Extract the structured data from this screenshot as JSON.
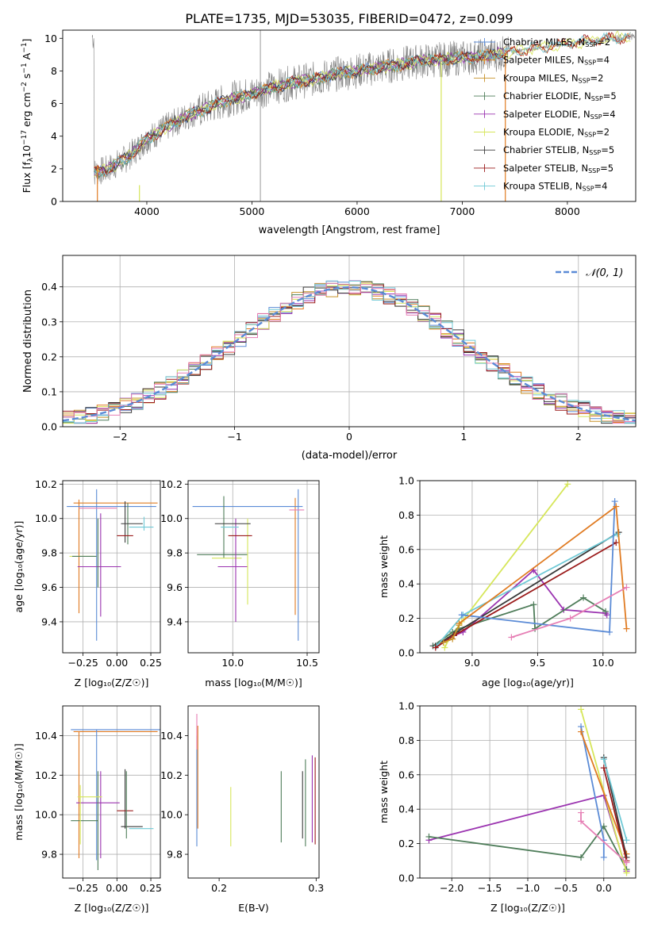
{
  "figure_title": "PLATE=1735, MJD=53035, FIBERID=0472, z=0.099",
  "colors": {
    "chabrier_miles": "#5b8bd6",
    "salpeter_miles": "#e07b22",
    "kroupa_miles": "#c8922a",
    "chabrier_elodie": "#4f7d5a",
    "salpeter_elodie": "#9b34b0",
    "kroupa_elodie": "#d6e65a",
    "chabrier_stelib": "#3a3a3a",
    "salpeter_stelib": "#9b1b1b",
    "kroupa_stelib": "#6fc9d6",
    "pink": "#e67fb5",
    "data_gray": "#808080",
    "normal_curve": "#5b8bd6"
  },
  "chart_data": [
    {
      "id": "spectrum",
      "type": "line",
      "title": "PLATE=1735, MJD=53035, FIBERID=0472, z=0.099",
      "xlabel": "wavelength [Angstrom, rest frame]",
      "ylabel_main": "Flux [f",
      "ylabel_sub": "λ",
      "ylabel_mid": "10",
      "ylabel_sup1": "−17",
      "ylabel_mid2": " erg cm",
      "ylabel_sup2": "−2",
      "ylabel_mid3": " s",
      "ylabel_sup3": "−1",
      "ylabel_mid4": " A",
      "ylabel_sup4": "−1",
      "ylabel_end": "]",
      "xlim": [
        3200,
        8650
      ],
      "ylim": [
        0,
        10.5
      ],
      "xticks": [
        4000,
        5000,
        6000,
        7000,
        8000
      ],
      "yticks": [
        0,
        2,
        4,
        6,
        8,
        10
      ],
      "legend_placement": "right",
      "legend": [
        {
          "imf": "Chabrier",
          "lib": "MILES",
          "n": "2",
          "color": "#5b8bd6"
        },
        {
          "imf": "Salpeter",
          "lib": "MILES",
          "n": "4",
          "color": "#e07b22"
        },
        {
          "imf": "Kroupa",
          "lib": "MILES",
          "n": "2",
          "color": "#c8922a"
        },
        {
          "imf": "Chabrier",
          "lib": "ELODIE",
          "n": "5",
          "color": "#4f7d5a"
        },
        {
          "imf": "Salpeter",
          "lib": "ELODIE",
          "n": "4",
          "color": "#9b34b0"
        },
        {
          "imf": "Kroupa",
          "lib": "ELODIE",
          "n": "2",
          "color": "#d6e65a"
        },
        {
          "imf": "Chabrier",
          "lib": "STELIB",
          "n": "5",
          "color": "#3a3a3a"
        },
        {
          "imf": "Salpeter",
          "lib": "STELIB",
          "n": "5",
          "color": "#9b1b1b"
        },
        {
          "imf": "Kroupa",
          "lib": "STELIB",
          "n": "4",
          "color": "#6fc9d6"
        }
      ],
      "legend_nssp_label": "N",
      "legend_nssp_sub": "SSP",
      "continuum": {
        "x": [
          3500,
          3600,
          3800,
          4000,
          4200,
          4400,
          4600,
          4800,
          5000,
          5200,
          5400,
          5600,
          5800,
          6000,
          6200,
          6400,
          6600,
          6800,
          7000,
          7200,
          7400,
          7700,
          8000,
          8300,
          8600
        ],
        "y": [
          1.8,
          1.9,
          2.6,
          3.8,
          4.6,
          5.3,
          5.8,
          6.3,
          6.6,
          7.0,
          7.3,
          7.5,
          7.8,
          8.0,
          8.2,
          8.4,
          8.6,
          8.7,
          8.8,
          8.9,
          9.1,
          9.4,
          9.7,
          9.9,
          10.1
        ]
      }
    },
    {
      "id": "residuals",
      "type": "histogram",
      "xlabel": "(data-model)/error",
      "ylabel": "Normed distribution",
      "xlim": [
        -2.5,
        2.5
      ],
      "ylim": [
        0,
        0.49
      ],
      "xticks": [
        -2,
        -1,
        0,
        1,
        2
      ],
      "yticks": [
        0.0,
        0.1,
        0.2,
        0.3,
        0.4
      ],
      "grid": true,
      "legend_label": "𝒩(0, 1)",
      "legend_placement": "top-right",
      "bin_width": 0.1
    },
    {
      "id": "age_vs_Z",
      "type": "errorbar",
      "xlabel": "Z [log₁₀(Z/Z☉)]",
      "ylabel": "age  [log₁₀(age/yr)]",
      "xlim": [
        -0.4,
        0.32
      ],
      "ylim": [
        9.22,
        10.22
      ],
      "xticks": [
        -0.25,
        0.0,
        0.25
      ],
      "xticklabels": [
        "−0.25",
        "0.00",
        "0.25"
      ],
      "yticks": [
        9.4,
        9.6,
        9.8,
        10.0,
        10.2
      ],
      "grid": true,
      "points": [
        {
          "x": -0.15,
          "y": 9.73,
          "xerr": 0.0,
          "yerr": 0.44,
          "color": "#5b8bd6"
        },
        {
          "x": -0.28,
          "y": 9.78,
          "xerr": 0.0,
          "yerr": 0.33,
          "color": "#e07b22"
        },
        {
          "x": -0.01,
          "y": 10.09,
          "xerr": 0.31,
          "yerr": 0.0,
          "color": "#e07b22"
        },
        {
          "x": -0.04,
          "y": 10.07,
          "xerr": 0.33,
          "yerr": 0.0,
          "color": "#5b8bd6"
        },
        {
          "x": -0.14,
          "y": 10.06,
          "xerr": 0.14,
          "yerr": 0.0,
          "color": "#e67fb5"
        },
        {
          "x": -0.12,
          "y": 9.73,
          "xerr": 0.0,
          "yerr": 0.3,
          "color": "#9b34b0"
        },
        {
          "x": -0.13,
          "y": 9.72,
          "xerr": 0.16,
          "yerr": 0.0,
          "color": "#9b34b0"
        },
        {
          "x": -0.26,
          "y": 9.78,
          "xerr": 0.09,
          "yerr": 0.0,
          "color": "#d6e65a"
        },
        {
          "x": -0.24,
          "y": 9.78,
          "xerr": 0.09,
          "yerr": 0.0,
          "color": "#4f7d5a"
        },
        {
          "x": -0.14,
          "y": 9.8,
          "xerr": 0.0,
          "yerr": 0.2,
          "color": "#4f7d5a"
        },
        {
          "x": 0.06,
          "y": 9.98,
          "xerr": 0.0,
          "yerr": 0.12,
          "color": "#3a3a3a"
        },
        {
          "x": 0.08,
          "y": 9.97,
          "xerr": 0.0,
          "yerr": 0.12,
          "color": "#4f7d5a"
        },
        {
          "x": 0.11,
          "y": 9.97,
          "xerr": 0.08,
          "yerr": 0.0,
          "color": "#3a3a3a"
        },
        {
          "x": 0.06,
          "y": 9.9,
          "xerr": 0.06,
          "yerr": 0.0,
          "color": "#9b1b1b"
        },
        {
          "x": 0.18,
          "y": 9.95,
          "xerr": 0.09,
          "yerr": 0.0,
          "color": "#6fc9d6"
        },
        {
          "x": 0.2,
          "y": 9.97,
          "xerr": 0.0,
          "yerr": 0.04,
          "color": "#6fc9d6"
        }
      ]
    },
    {
      "id": "age_vs_mass",
      "type": "errorbar",
      "xlabel": "mass [log₁₀(M/M☉)]",
      "xlim": [
        9.7,
        10.58
      ],
      "ylim": [
        9.22,
        10.22
      ],
      "xticks": [
        10.0,
        10.5
      ],
      "xticklabels": [
        "10.0",
        "10.5"
      ],
      "yticks": [
        9.4,
        9.6,
        9.8,
        10.0,
        10.2
      ],
      "grid": true,
      "points": [
        {
          "x": 10.44,
          "y": 9.73,
          "xerr": 0.0,
          "yerr": 0.44,
          "color": "#5b8bd6"
        },
        {
          "x": 10.42,
          "y": 9.78,
          "xerr": 0.0,
          "yerr": 0.34,
          "color": "#e07b22"
        },
        {
          "x": 10.1,
          "y": 10.07,
          "xerr": 0.37,
          "yerr": 0.0,
          "color": "#5b8bd6"
        },
        {
          "x": 10.43,
          "y": 10.05,
          "xerr": 0.05,
          "yerr": 0.0,
          "color": "#e67fb5"
        },
        {
          "x": 9.94,
          "y": 9.95,
          "xerr": 0.0,
          "yerr": 0.18,
          "color": "#4f7d5a"
        },
        {
          "x": 9.93,
          "y": 9.79,
          "xerr": 0.17,
          "yerr": 0.0,
          "color": "#4f7d5a"
        },
        {
          "x": 10.0,
          "y": 9.72,
          "xerr": 0.1,
          "yerr": 0.0,
          "color": "#9b34b0"
        },
        {
          "x": 9.96,
          "y": 9.77,
          "xerr": 0.1,
          "yerr": 0.0,
          "color": "#d6e65a"
        },
        {
          "x": 10.02,
          "y": 9.7,
          "xerr": 0.0,
          "yerr": 0.3,
          "color": "#9b34b0"
        },
        {
          "x": 10.1,
          "y": 9.75,
          "xerr": 0.0,
          "yerr": 0.25,
          "color": "#d6e65a"
        },
        {
          "x": 10.0,
          "y": 9.97,
          "xerr": 0.12,
          "yerr": 0.0,
          "color": "#3a3a3a"
        },
        {
          "x": 10.05,
          "y": 9.9,
          "xerr": 0.08,
          "yerr": 0.0,
          "color": "#9b1b1b"
        },
        {
          "x": 9.98,
          "y": 9.95,
          "xerr": 0.06,
          "yerr": 0.0,
          "color": "#6fc9d6"
        }
      ]
    },
    {
      "id": "weight_vs_age",
      "type": "line",
      "xlabel": "age  [log₁₀(age/yr)]",
      "ylabel": "mass weight",
      "xlim": [
        8.6,
        10.25
      ],
      "ylim": [
        0,
        1.0
      ],
      "xticks": [
        9.0,
        9.5,
        10.0
      ],
      "xticklabels": [
        "9.0",
        "9.5",
        "10.0"
      ],
      "yticks": [
        0.0,
        0.2,
        0.4,
        0.6,
        0.8,
        1.0
      ],
      "grid": true,
      "series": [
        {
          "color": "#d6e65a",
          "x": [
            8.79,
            8.83,
            8.92,
            9.73
          ],
          "y": [
            0.03,
            0.09,
            0.18,
            0.98
          ]
        },
        {
          "color": "#9b34b0",
          "x": [
            8.7,
            8.86,
            8.93,
            9.47,
            9.7,
            10.02,
            10.03
          ],
          "y": [
            0.04,
            0.1,
            0.12,
            0.48,
            0.25,
            0.23,
            0.22
          ]
        },
        {
          "color": "#4f7d5a",
          "x": [
            8.7,
            8.85,
            8.9,
            9.47,
            9.48,
            9.85,
            10.02
          ],
          "y": [
            0.04,
            0.12,
            0.14,
            0.28,
            0.14,
            0.32,
            0.24
          ]
        },
        {
          "color": "#3a3a3a",
          "x": [
            8.72,
            8.88,
            10.12
          ],
          "y": [
            0.04,
            0.12,
            0.7
          ]
        },
        {
          "color": "#6fc9d6",
          "x": [
            8.73,
            8.93,
            10.11
          ],
          "y": [
            0.04,
            0.22,
            0.69
          ]
        },
        {
          "color": "#9b1b1b",
          "x": [
            8.72,
            8.86,
            10.1
          ],
          "y": [
            0.03,
            0.1,
            0.64
          ]
        },
        {
          "color": "#5b8bd6",
          "x": [
            8.92,
            10.05,
            10.09
          ],
          "y": [
            0.22,
            0.12,
            0.88
          ]
        },
        {
          "color": "#e07b22",
          "x": [
            8.9,
            10.1,
            10.18
          ],
          "y": [
            0.17,
            0.85,
            0.14
          ]
        },
        {
          "color": "#e67fb5",
          "x": [
            9.3,
            9.75,
            10.18
          ],
          "y": [
            0.09,
            0.2,
            0.38
          ]
        },
        {
          "color": "#c8922a",
          "x": [
            8.78,
            8.85,
            8.9
          ],
          "y": [
            0.06,
            0.08,
            0.16
          ]
        }
      ]
    },
    {
      "id": "mass_vs_Z",
      "type": "errorbar",
      "xlabel": "Z [log₁₀(Z/Z☉)]",
      "ylabel": "mass [log₁₀(M/M☉)]",
      "xlim": [
        -0.4,
        0.32
      ],
      "ylim": [
        9.68,
        10.55
      ],
      "xticks": [
        -0.25,
        0.0,
        0.25
      ],
      "xticklabels": [
        "−0.25",
        "0.00",
        "0.25"
      ],
      "yticks": [
        9.8,
        10.0,
        10.2,
        10.4
      ],
      "grid": true,
      "points": [
        {
          "x": -0.01,
          "y": 10.43,
          "xerr": 0.33,
          "yerr": 0.0,
          "color": "#5b8bd6"
        },
        {
          "x": -0.01,
          "y": 10.42,
          "xerr": 0.31,
          "yerr": 0.0,
          "color": "#e07b22"
        },
        {
          "x": -0.15,
          "y": 10.1,
          "xerr": 0.0,
          "yerr": 0.33,
          "color": "#5b8bd6"
        },
        {
          "x": -0.28,
          "y": 10.1,
          "xerr": 0.0,
          "yerr": 0.32,
          "color": "#e07b22"
        },
        {
          "x": -0.14,
          "y": 10.06,
          "xerr": 0.16,
          "yerr": 0.0,
          "color": "#9b34b0"
        },
        {
          "x": -0.12,
          "y": 10.0,
          "xerr": 0.0,
          "yerr": 0.22,
          "color": "#9b34b0"
        },
        {
          "x": -0.14,
          "y": 9.97,
          "xerr": 0.0,
          "yerr": 0.25,
          "color": "#4f7d5a"
        },
        {
          "x": -0.24,
          "y": 9.97,
          "xerr": 0.1,
          "yerr": 0.0,
          "color": "#4f7d5a"
        },
        {
          "x": -0.2,
          "y": 10.09,
          "xerr": 0.09,
          "yerr": 0.0,
          "color": "#d6e65a"
        },
        {
          "x": -0.27,
          "y": 10.0,
          "xerr": 0.0,
          "yerr": 0.15,
          "color": "#d6e65a"
        },
        {
          "x": 0.06,
          "y": 10.08,
          "xerr": 0.0,
          "yerr": 0.15,
          "color": "#3a3a3a"
        },
        {
          "x": 0.06,
          "y": 10.02,
          "xerr": 0.06,
          "yerr": 0.0,
          "color": "#9b1b1b"
        },
        {
          "x": 0.11,
          "y": 9.94,
          "xerr": 0.08,
          "yerr": 0.0,
          "color": "#3a3a3a"
        },
        {
          "x": 0.18,
          "y": 9.93,
          "xerr": 0.09,
          "yerr": 0.0,
          "color": "#6fc9d6"
        },
        {
          "x": 0.07,
          "y": 10.05,
          "xerr": 0.0,
          "yerr": 0.17,
          "color": "#4f7d5a"
        }
      ]
    },
    {
      "id": "mass_vs_ebv",
      "type": "errorbar",
      "xlabel": "E(B-V)",
      "xlim": [
        0.168,
        0.303
      ],
      "ylim": [
        9.68,
        10.55
      ],
      "xticks": [
        0.2,
        0.3
      ],
      "xticklabels": [
        "0.2",
        "0.3"
      ],
      "yticks": [
        9.8,
        10.0,
        10.2,
        10.4
      ],
      "grid": false,
      "points": [
        {
          "x": 0.177,
          "y": 10.12,
          "xerr": 0.0,
          "yerr": 0.28,
          "color": "#5b8bd6"
        },
        {
          "x": 0.178,
          "y": 10.19,
          "xerr": 0.0,
          "yerr": 0.26,
          "color": "#e07b22"
        },
        {
          "x": 0.177,
          "y": 10.42,
          "xerr": 0.0,
          "yerr": 0.09,
          "color": "#e67fb5"
        },
        {
          "x": 0.212,
          "y": 9.99,
          "xerr": 0.0,
          "yerr": 0.15,
          "color": "#d6e65a"
        },
        {
          "x": 0.264,
          "y": 10.04,
          "xerr": 0.0,
          "yerr": 0.18,
          "color": "#4f7d5a"
        },
        {
          "x": 0.286,
          "y": 10.05,
          "xerr": 0.0,
          "yerr": 0.17,
          "color": "#3a3a3a"
        },
        {
          "x": 0.289,
          "y": 10.06,
          "xerr": 0.0,
          "yerr": 0.22,
          "color": "#4f7d5a"
        },
        {
          "x": 0.296,
          "y": 10.08,
          "xerr": 0.0,
          "yerr": 0.22,
          "color": "#9b34b0"
        },
        {
          "x": 0.299,
          "y": 10.07,
          "xerr": 0.0,
          "yerr": 0.22,
          "color": "#9b1b1b"
        }
      ]
    },
    {
      "id": "weight_vs_Z",
      "type": "line",
      "xlabel": "Z [log₁₀(Z/Z☉)]",
      "ylabel": "mass weight",
      "xlim": [
        -2.42,
        0.42
      ],
      "ylim": [
        0,
        1.0
      ],
      "xticks": [
        -2.0,
        -1.5,
        -1.0,
        -0.5,
        0.0
      ],
      "xticklabels": [
        "−2.0",
        "−1.5",
        "−1.0",
        "−0.5",
        "0.0"
      ],
      "yticks": [
        0.0,
        0.2,
        0.4,
        0.6,
        0.8,
        1.0
      ],
      "grid": true,
      "series": [
        {
          "color": "#9b34b0",
          "x": [
            -2.3,
            0.0,
            0.3
          ],
          "y": [
            0.22,
            0.48,
            0.04
          ]
        },
        {
          "color": "#4f7d5a",
          "x": [
            -2.3,
            -0.3,
            0.0,
            0.3
          ],
          "y": [
            0.24,
            0.12,
            0.3,
            0.05
          ]
        },
        {
          "color": "#d6e65a",
          "x": [
            -0.3,
            0.3
          ],
          "y": [
            0.98,
            0.03
          ]
        },
        {
          "color": "#5b8bd6",
          "x": [
            -0.3,
            0.0,
            0.0
          ],
          "y": [
            0.88,
            0.22,
            0.12
          ]
        },
        {
          "color": "#e07b22",
          "x": [
            -0.3,
            0.3
          ],
          "y": [
            0.85,
            0.14
          ]
        },
        {
          "color": "#3a3a3a",
          "x": [
            0.0,
            0.3
          ],
          "y": [
            0.7,
            0.12
          ]
        },
        {
          "color": "#6fc9d6",
          "x": [
            0.0,
            0.3
          ],
          "y": [
            0.69,
            0.22
          ]
        },
        {
          "color": "#9b1b1b",
          "x": [
            0.0,
            0.3
          ],
          "y": [
            0.64,
            0.1
          ]
        },
        {
          "color": "#e67fb5",
          "x": [
            -0.3,
            -0.3,
            0.3
          ],
          "y": [
            0.38,
            0.33,
            0.09
          ]
        }
      ]
    }
  ]
}
